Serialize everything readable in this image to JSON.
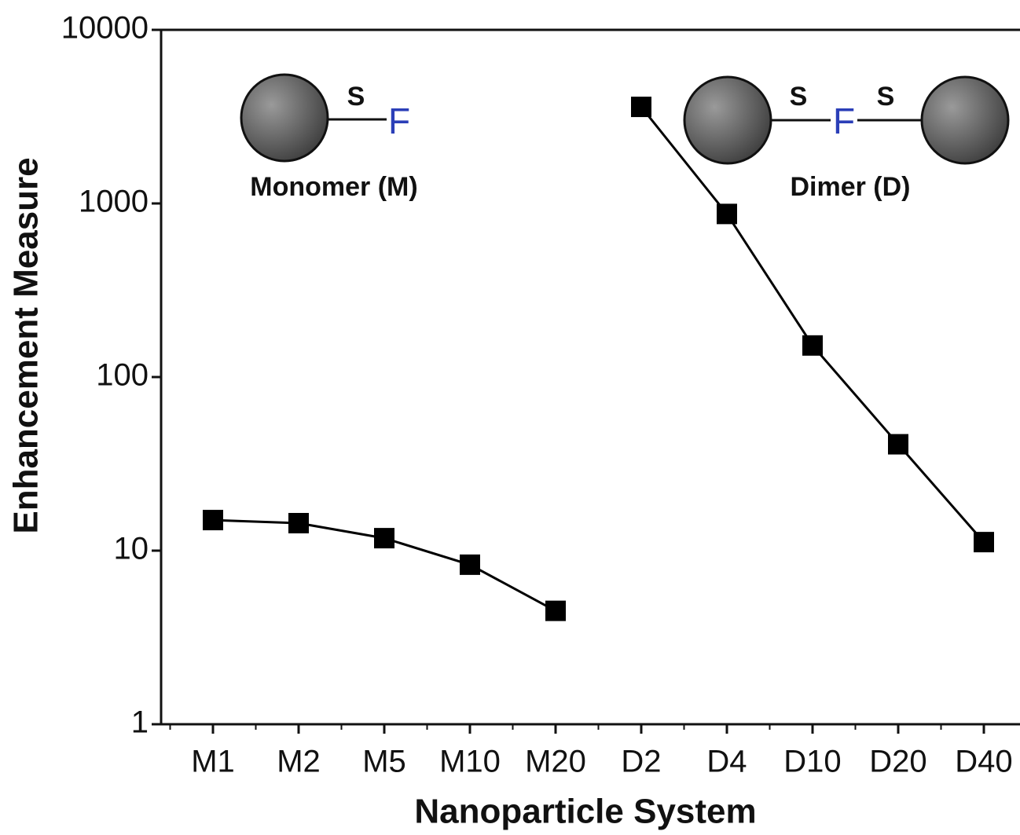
{
  "chart_data": {
    "type": "line",
    "x_label": "Nanoparticle System",
    "y_label": "Enhancement Measure",
    "categories": [
      "M1",
      "M2",
      "M5",
      "M10",
      "M20",
      "D2",
      "D4",
      "D10",
      "D20",
      "D40"
    ],
    "series": [
      {
        "color": "#000000",
        "values": [
          15,
          14.4,
          11.8,
          8.3,
          4.5,
          null,
          null,
          null,
          null,
          null
        ]
      },
      {
        "color": "#000000",
        "values": [
          null,
          null,
          null,
          null,
          null,
          3600,
          870,
          152,
          41,
          11.2
        ]
      }
    ],
    "ylim": [
      1,
      10000
    ],
    "yticks": [
      1,
      10,
      100,
      1000,
      10000
    ],
    "log_y": true,
    "annotations": [
      "S",
      "F",
      "Monomer (M)",
      "Dimer (D)"
    ]
  }
}
